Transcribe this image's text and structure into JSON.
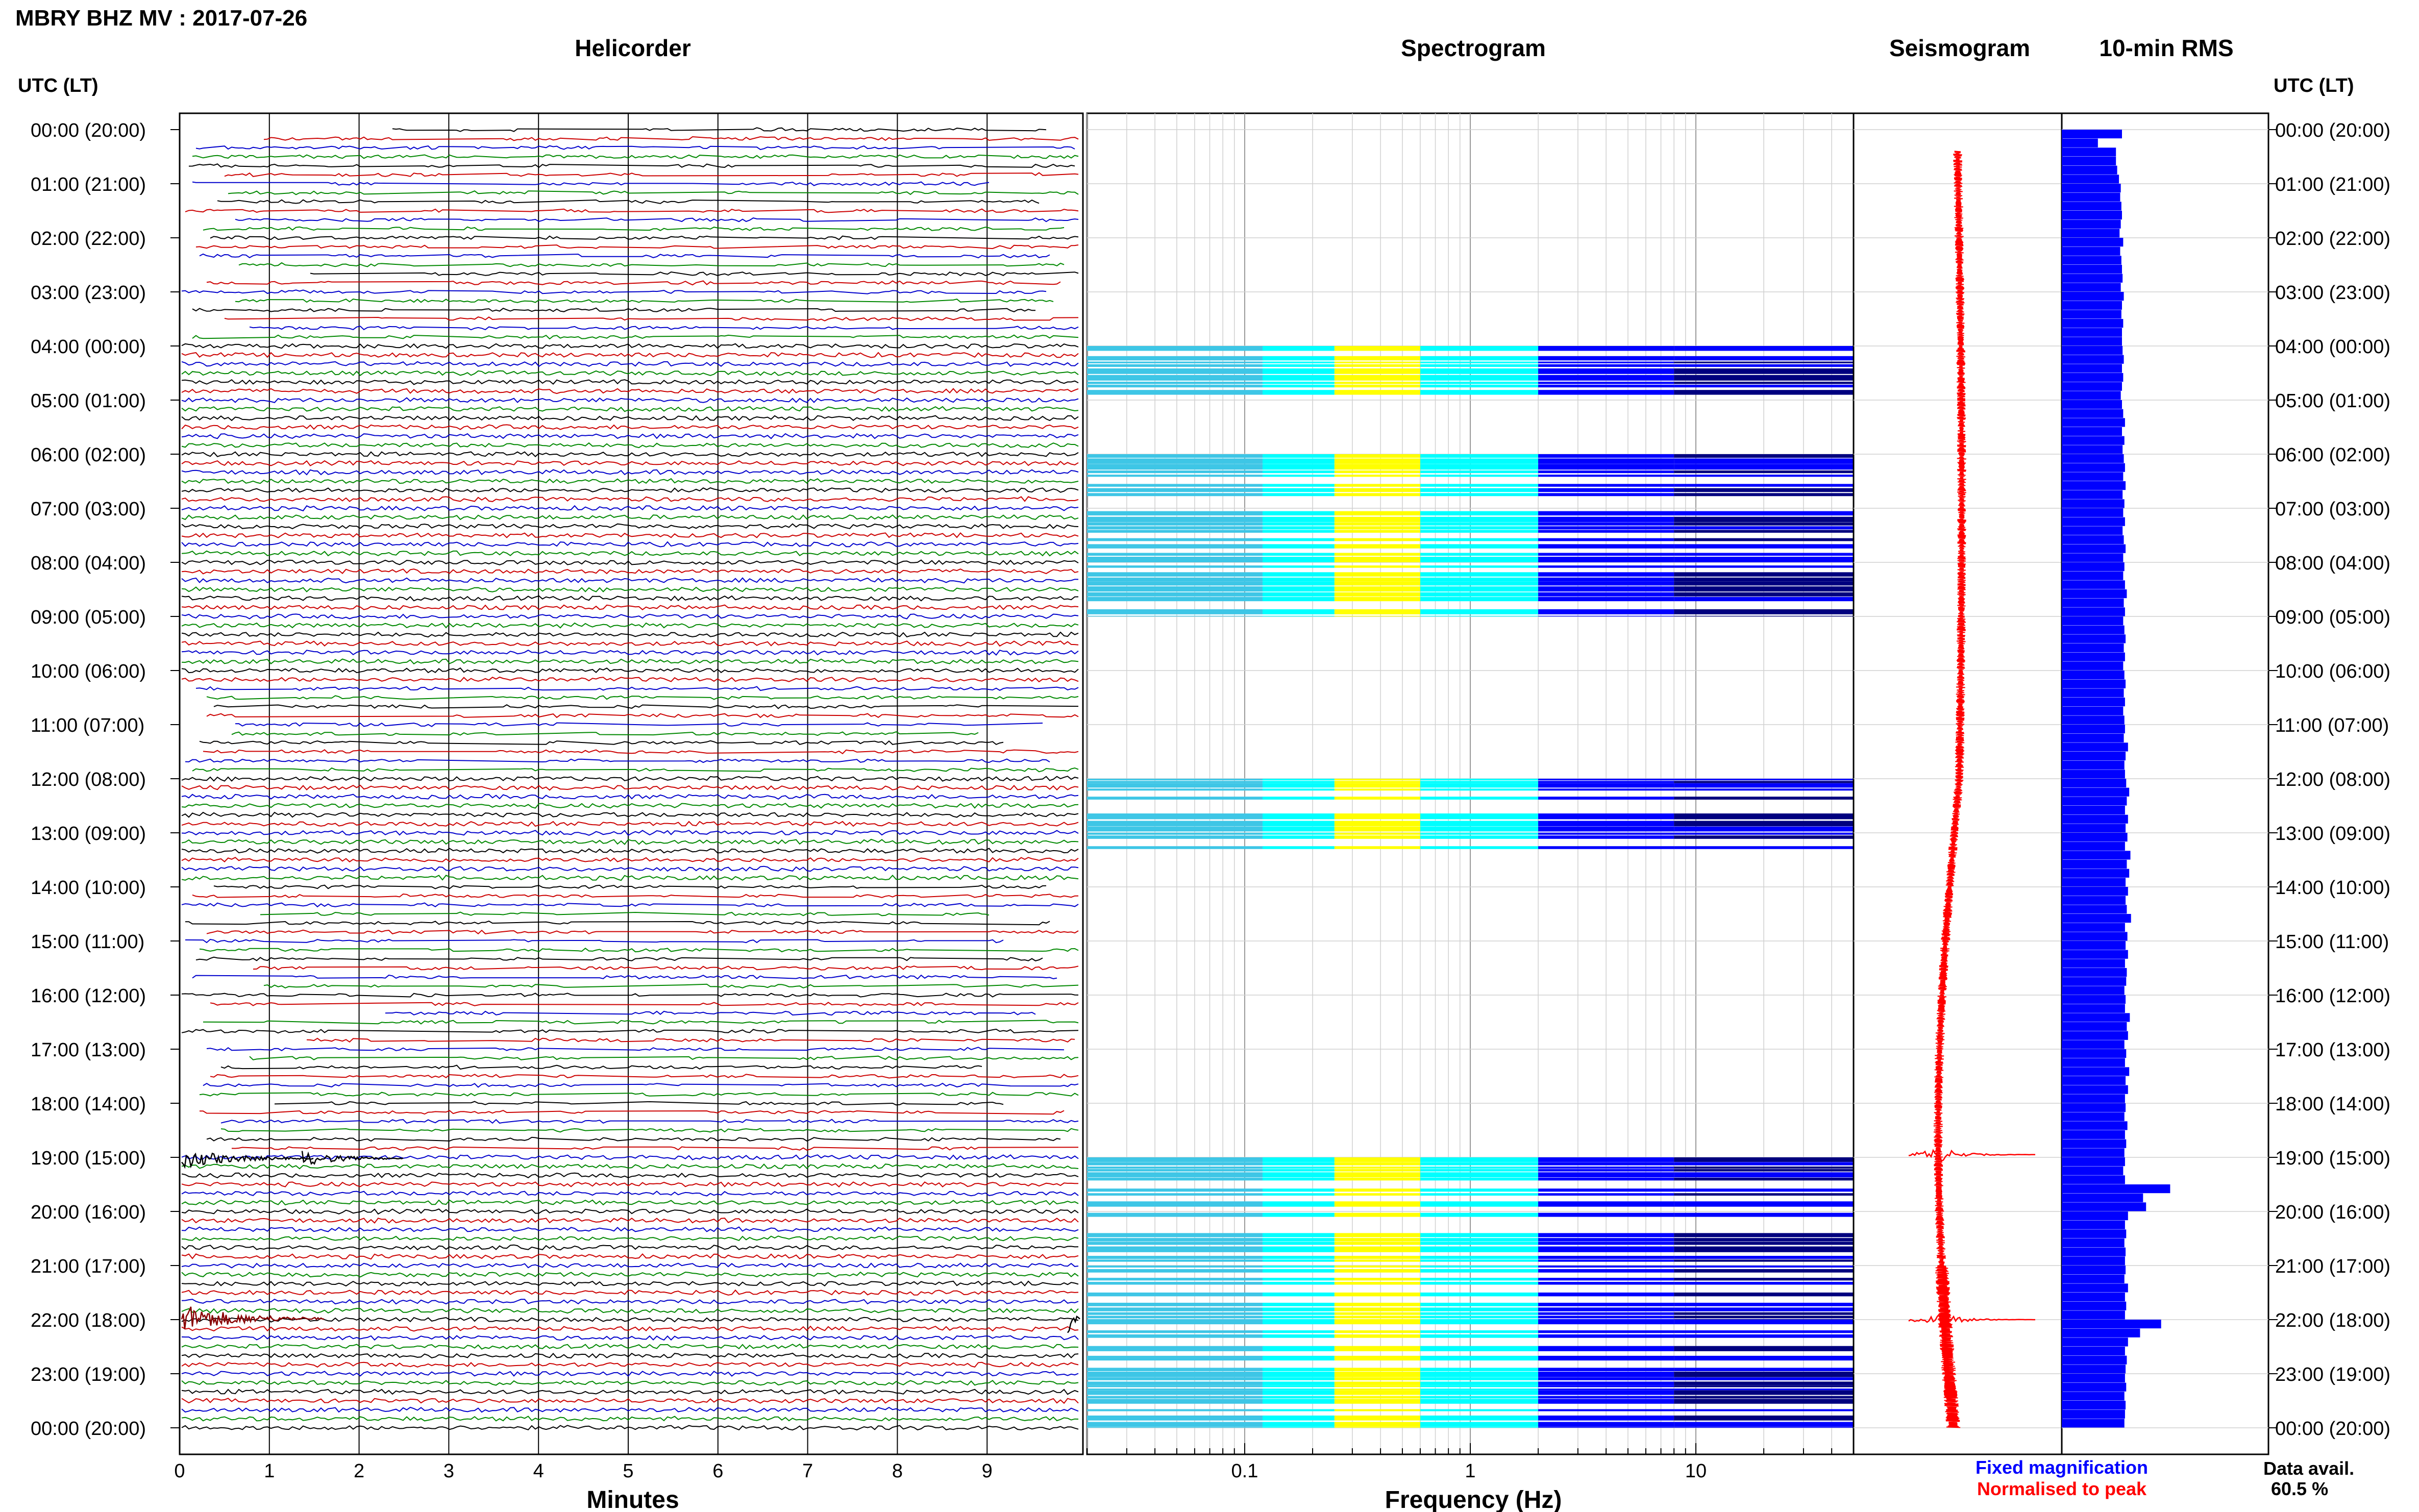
{
  "figure": {
    "title": "MBRY BHZ MV : 2017-07-26",
    "left_axis_label": "UTC (LT)",
    "right_axis_label": "UTC (LT)",
    "legend": {
      "fixed": "Fixed magnification",
      "normalised": "Normalised to peak",
      "fixed_color": "#0000ff",
      "normalised_color": "#ff0000"
    },
    "data_avail_label": "Data avail.",
    "data_avail_value": "60.5 %"
  },
  "time_labels": [
    "00:00 (20:00)",
    "01:00 (21:00)",
    "02:00 (22:00)",
    "03:00 (23:00)",
    "04:00 (00:00)",
    "05:00 (01:00)",
    "06:00 (02:00)",
    "07:00 (03:00)",
    "08:00 (04:00)",
    "09:00 (05:00)",
    "10:00 (06:00)",
    "11:00 (07:00)",
    "12:00 (08:00)",
    "13:00 (09:00)",
    "14:00 (10:00)",
    "15:00 (11:00)",
    "16:00 (12:00)",
    "17:00 (13:00)",
    "18:00 (14:00)",
    "19:00 (15:00)",
    "20:00 (16:00)",
    "21:00 (17:00)",
    "22:00 (18:00)",
    "23:00 (19:00)",
    "00:00 (20:00)"
  ],
  "chart_data": [
    {
      "type": "line",
      "title": "Helicorder",
      "xlabel": "Minutes",
      "ylabel": "UTC (LT)",
      "xlim": [
        0,
        10
      ],
      "xticks": [
        "0",
        "1",
        "2",
        "3",
        "4",
        "5",
        "6",
        "7",
        "8",
        "9"
      ],
      "rows_per_hour": 6,
      "trace_colors": [
        "#000000",
        "#cc0000",
        "#0000cc",
        "#008800"
      ],
      "grid": true
    },
    {
      "type": "heatmap",
      "title": "Spectrogram",
      "xlabel": "Frequency (Hz)",
      "xscale": "log",
      "xlim": [
        0.02,
        50
      ],
      "xticks": [
        "0.1",
        "1",
        "10"
      ],
      "colormap": [
        "#00007f",
        "#0000ff",
        "#00ffff",
        "#ffff00"
      ],
      "active_hours": [
        [
          4.0,
          5.0
        ],
        [
          6.0,
          7.0
        ],
        [
          7.0,
          8.0
        ],
        [
          8.0,
          9.0
        ],
        [
          12.0,
          13.3
        ],
        [
          19.0,
          20.1
        ],
        [
          20.4,
          21.0
        ],
        [
          21.0,
          22.0
        ],
        [
          22.0,
          23.0
        ],
        [
          23.0,
          24.0
        ]
      ]
    },
    {
      "type": "line",
      "title": "Seismogram",
      "ylabel": "UTC (LT)",
      "ylim": [
        0,
        24
      ],
      "events_hour": [
        18.95,
        22.0
      ],
      "series": [
        {
          "name": "Normalised to peak",
          "color": "#ff0000"
        }
      ]
    },
    {
      "type": "bar",
      "title": "10-min RMS",
      "orientation": "horizontal",
      "ylabel": "UTC (LT)",
      "ylim": [
        0,
        24
      ],
      "data_start_hour": 0.0,
      "bar_color": "#0000ff",
      "values": [
        1.0,
        0.6,
        0.9,
        0.9,
        0.92,
        0.95,
        0.98,
        0.97,
        0.99,
        1.0,
        0.98,
        0.96,
        1.02,
        0.97,
        0.99,
        1.0,
        1.01,
        0.98,
        1.03,
        1.0,
        0.99,
        1.02,
        1.0,
        1.0,
        1.01,
        1.03,
        1.0,
        1.02,
        1.0,
        0.98,
        1.0,
        1.02,
        1.05,
        1.0,
        1.04,
        1.01,
        1.03,
        1.05,
        1.02,
        1.06,
        1.01,
        1.04,
        1.02,
        1.05,
        1.01,
        1.03,
        1.06,
        1.02,
        1.04,
        1.02,
        1.05,
        1.08,
        1.03,
        1.05,
        1.02,
        1.04,
        1.06,
        1.03,
        1.05,
        1.02,
        1.04,
        1.06,
        1.03,
        1.05,
        1.02,
        1.04,
        1.05,
        1.03,
        1.1,
        1.06,
        1.04,
        1.05,
        1.07,
        1.12,
        1.08,
        1.05,
        1.1,
        1.06,
        1.09,
        1.05,
        1.14,
        1.08,
        1.12,
        1.06,
        1.1,
        1.06,
        1.08,
        1.15,
        1.05,
        1.09,
        1.06,
        1.1,
        1.05,
        1.08,
        1.07,
        1.04,
        1.06,
        1.05,
        1.13,
        1.08,
        1.1,
        1.04,
        1.07,
        1.05,
        1.12,
        1.06,
        1.1,
        1.05,
        1.06,
        1.04,
        1.09,
        1.05,
        1.07,
        1.04,
        1.05,
        1.02,
        1.05,
        1.8,
        1.35,
        1.4,
        1.1,
        1.05,
        1.07,
        1.04,
        1.06,
        1.05,
        1.06,
        1.04,
        1.1,
        1.05,
        1.07,
        1.05,
        1.65,
        1.3,
        1.1,
        1.05,
        1.08,
        1.06,
        1.05,
        1.07,
        1.04,
        1.06,
        1.05,
        1.04
      ]
    }
  ]
}
